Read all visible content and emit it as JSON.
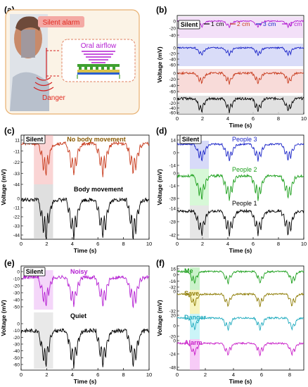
{
  "figure": {
    "panels": {
      "a": {
        "letter": "(a)",
        "silent_alarm": "Silent alarm",
        "oral_airflow": "Oral airflow",
        "danger": "Danger"
      },
      "b": {
        "letter": "(b)"
      },
      "c": {
        "letter": "(c)"
      },
      "d": {
        "letter": "(d)"
      },
      "e": {
        "letter": "(e)"
      },
      "f": {
        "letter": "(f)"
      }
    },
    "colors": {
      "black": "#000000",
      "red": "#c83c1e",
      "blue": "#1a24c8",
      "purple": "#b41ed2",
      "green": "#1ea01e",
      "olive": "#8c7a00",
      "cyan": "#1eaabe",
      "magenta": "#c81ec8"
    }
  },
  "chart_data": [
    {
      "panel": "b",
      "type": "line",
      "xlabel": "Time (s)",
      "ylabel": "Voltage (mV)",
      "xlim": [
        0,
        10
      ],
      "xticks": [
        "0",
        "2",
        "4",
        "6",
        "8",
        "10"
      ],
      "silent_label": "Silent",
      "silent_window": [
        1,
        2.5
      ],
      "yticks": [
        [
          "0",
          "-20",
          "-40"
        ],
        [
          "0",
          "-20",
          "-40",
          "-60"
        ],
        [
          "0",
          "-20",
          "-40",
          "-60"
        ],
        [
          "0",
          "-20",
          "-40",
          "-60"
        ]
      ],
      "series": [
        {
          "name": "4 cm",
          "color": "#b41ed2"
        },
        {
          "name": "3 cm",
          "color": "#1a24c8"
        },
        {
          "name": "2 cm",
          "color": "#c83c1e"
        },
        {
          "name": "1 cm",
          "color": "#000000"
        }
      ],
      "legend": [
        "1 cm",
        "2 cm",
        "3 cm",
        "4 cm"
      ],
      "legend_colors": [
        "#000000",
        "#c83c1e",
        "#1a24c8",
        "#b41ed2"
      ]
    },
    {
      "panel": "c",
      "type": "line",
      "xlabel": "Time (s)",
      "ylabel": "Voltage (mV)",
      "xlim": [
        0,
        10
      ],
      "xticks": [
        "0",
        "2",
        "4",
        "6",
        "8",
        "10"
      ],
      "silent_label": "Silent",
      "silent_window": [
        1,
        2.5
      ],
      "yticks": [
        [
          "11",
          "-11",
          "-22",
          "-33",
          "-44"
        ],
        [
          "0",
          "-11",
          "-22",
          "-33",
          "-44"
        ]
      ],
      "series": [
        {
          "name": "No body movement",
          "color": "#c83c1e"
        },
        {
          "name": "Body movement",
          "color": "#000000"
        }
      ]
    },
    {
      "panel": "d",
      "type": "line",
      "xlabel": "Time (s)",
      "ylabel": "Voltage (mV)",
      "xlim": [
        0,
        10
      ],
      "xticks": [
        "0",
        "2",
        "4",
        "6",
        "8",
        "10"
      ],
      "silent_label": "Silent",
      "silent_window": [
        1,
        2.5
      ],
      "yticks": [
        [
          "14",
          "0",
          "-14"
        ],
        [
          "0",
          "-14",
          "-28"
        ],
        [
          "-14",
          "-28",
          "-42"
        ]
      ],
      "series": [
        {
          "name": "People 3",
          "color": "#1a24c8"
        },
        {
          "name": "People 2",
          "color": "#1ea01e"
        },
        {
          "name": "People 1",
          "color": "#000000"
        }
      ]
    },
    {
      "panel": "e",
      "type": "line",
      "xlabel": "Time (s)",
      "ylabel": "Voltage (mV)",
      "xlim": [
        0,
        10
      ],
      "xticks": [
        "0",
        "2",
        "4",
        "6",
        "8",
        "10"
      ],
      "silent_label": "Silent",
      "silent_window": [
        1,
        2.5
      ],
      "yticks": [
        [
          "0",
          "-10",
          "-20",
          "-30",
          "-40",
          "-50"
        ],
        [
          "0",
          "-10",
          "-20",
          "-30",
          "-40",
          "-50",
          "-60"
        ]
      ],
      "series": [
        {
          "name": "Noisy",
          "color": "#b41ed2"
        },
        {
          "name": "Quiet",
          "color": "#000000"
        }
      ]
    },
    {
      "panel": "f",
      "type": "line",
      "xlabel": "Time (s)",
      "ylabel": "Voltage (mV)",
      "xlim": [
        0,
        9
      ],
      "xticks": [
        "0",
        "2",
        "4",
        "6",
        "8"
      ],
      "silent_window": [
        0.9,
        1.6
      ],
      "yticks": [
        [
          "16",
          "0",
          "-16",
          "-32"
        ],
        [
          "0",
          "-32"
        ],
        [
          "20",
          "0",
          "-20"
        ],
        [
          "0",
          "-24",
          "-48"
        ]
      ],
      "series": [
        {
          "name": "Me",
          "color": "#1ea01e"
        },
        {
          "name": "Save",
          "color": "#8c7a00"
        },
        {
          "name": "Danger",
          "color": "#1eaabe"
        },
        {
          "name": "Alarm",
          "color": "#c81ec8"
        }
      ]
    }
  ]
}
